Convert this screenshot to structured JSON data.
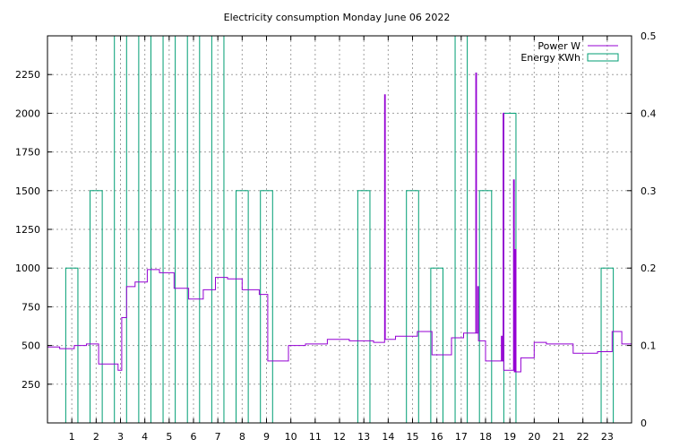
{
  "chart_data": {
    "type": "line",
    "title": "Electricity consumption Monday June 06 2022",
    "xlabel": "",
    "ylabel": "",
    "xlim": [
      0,
      24
    ],
    "ylim": [
      0,
      2500
    ],
    "y2lim": [
      0,
      0.5
    ],
    "x_ticks": [
      1,
      2,
      3,
      4,
      5,
      6,
      7,
      8,
      9,
      10,
      11,
      12,
      13,
      14,
      15,
      16,
      17,
      18,
      19,
      20,
      21,
      22,
      23
    ],
    "y_ticks": [
      250,
      500,
      750,
      1000,
      1250,
      1500,
      1750,
      2000,
      2250
    ],
    "y2_ticks": [
      0,
      0.1,
      0.2,
      0.3,
      0.4,
      0.5
    ],
    "grid": true,
    "legend_position": "top-right",
    "colors": {
      "power": "#9400d3",
      "energy": "#009e73"
    },
    "series": [
      {
        "name": "Power W",
        "kind": "step",
        "axis": "y",
        "points": [
          [
            0.0,
            490
          ],
          [
            0.5,
            480
          ],
          [
            1.1,
            500
          ],
          [
            1.6,
            510
          ],
          [
            2.1,
            380
          ],
          [
            2.9,
            340
          ],
          [
            3.05,
            680
          ],
          [
            3.25,
            880
          ],
          [
            3.6,
            910
          ],
          [
            4.1,
            990
          ],
          [
            4.6,
            970
          ],
          [
            5.2,
            870
          ],
          [
            5.8,
            800
          ],
          [
            6.4,
            860
          ],
          [
            6.9,
            940
          ],
          [
            7.4,
            930
          ],
          [
            8.0,
            860
          ],
          [
            8.7,
            830
          ],
          [
            9.05,
            400
          ],
          [
            9.9,
            500
          ],
          [
            10.6,
            510
          ],
          [
            11.5,
            540
          ],
          [
            12.4,
            530
          ],
          [
            13.4,
            520
          ],
          [
            13.85,
            2120
          ],
          [
            13.88,
            540
          ],
          [
            14.3,
            560
          ],
          [
            15.2,
            590
          ],
          [
            15.8,
            440
          ],
          [
            16.6,
            550
          ],
          [
            17.1,
            580
          ],
          [
            17.6,
            2260
          ],
          [
            17.63,
            580
          ],
          [
            17.68,
            880
          ],
          [
            17.71,
            530
          ],
          [
            18.0,
            400
          ],
          [
            18.65,
            560
          ],
          [
            18.68,
            400
          ],
          [
            18.72,
            2000
          ],
          [
            18.75,
            340
          ],
          [
            19.15,
            1570
          ],
          [
            19.18,
            330
          ],
          [
            19.22,
            1120
          ],
          [
            19.25,
            330
          ],
          [
            19.45,
            420
          ],
          [
            20.0,
            520
          ],
          [
            20.5,
            510
          ],
          [
            21.6,
            450
          ],
          [
            22.6,
            460
          ],
          [
            23.2,
            590
          ],
          [
            23.6,
            510
          ],
          [
            24.0,
            510
          ]
        ]
      },
      {
        "name": "Energy KWh",
        "kind": "bars",
        "axis": "y2",
        "bar_width": 0.5,
        "x": [
          1,
          2,
          3,
          4,
          5,
          6,
          7,
          8,
          9,
          10,
          11,
          12,
          13,
          14,
          15,
          16,
          17,
          18,
          19,
          20,
          21,
          22,
          23
        ],
        "values": [
          0.2,
          0.3,
          0.5,
          0.5,
          0.5,
          0.5,
          0.5,
          0.3,
          0.3,
          0,
          0,
          0,
          0.3,
          0,
          0.3,
          0.2,
          0.5,
          0.3,
          0.4,
          0,
          0,
          0,
          0.2
        ]
      }
    ]
  }
}
